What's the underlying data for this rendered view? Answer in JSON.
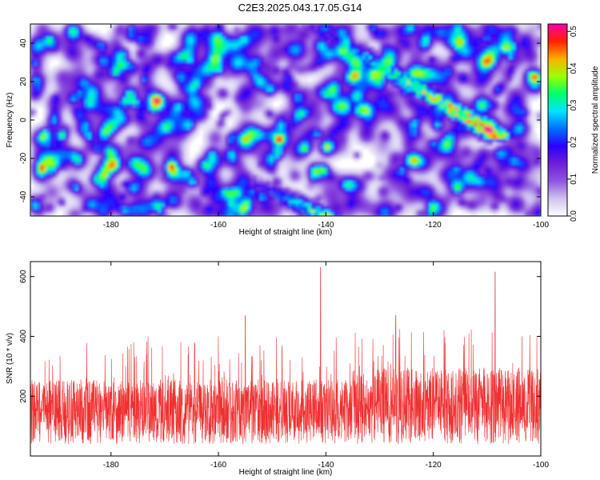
{
  "title": "C2E3.2025.043.17.05.G14",
  "chart_data": [
    {
      "type": "heatmap",
      "xlabel": "Height of straight line (km)",
      "ylabel": "Frequency (Hz)",
      "xlim": [
        -195,
        -100
      ],
      "ylim": [
        -50,
        50
      ],
      "xticks": [
        "-180",
        "-160",
        "-140",
        "-120",
        "-100"
      ],
      "yticks": [
        "40",
        "20",
        "0",
        "-20",
        "-40"
      ],
      "colorbar": {
        "label": "Normalized spectral amplitude",
        "range": [
          0,
          0.52
        ],
        "ticks": [
          "0.5",
          "0.4",
          "0.3",
          "0.2",
          "0.1",
          "0.0"
        ],
        "colors": [
          "#ffffff",
          "#cfc2ee",
          "#8f55e0",
          "#6e1fd6",
          "#2a00ff",
          "#0070ff",
          "#00e5ff",
          "#00ff6a",
          "#9dff00",
          "#ffb000",
          "#ff2000",
          "#ff00a8"
        ]
      },
      "ridges": [
        {
          "x": [
            -142,
            -108
          ],
          "y": [
            48,
            -8
          ],
          "peak": 0.48
        },
        {
          "x": [
            -155,
            -140
          ],
          "y": [
            -31,
            -50
          ],
          "peak": 0.36
        }
      ],
      "background_mean": 0.05
    },
    {
      "type": "line",
      "xlabel": "Height of straight line (km)",
      "ylabel": "SNR (10 * v/v)",
      "xlim": [
        -195,
        -100
      ],
      "ylim": [
        0,
        650
      ],
      "xticks": [
        "-180",
        "-160",
        "-140",
        "-120",
        "-100"
      ],
      "yticks": [
        "600",
        "400",
        "200"
      ],
      "color": "#f03030",
      "baseline_mean": 160,
      "peaks": [
        {
          "x": -141,
          "y": 630
        },
        {
          "x": -108.5,
          "y": 615
        },
        {
          "x": -155,
          "y": 470
        },
        {
          "x": -127,
          "y": 470
        }
      ]
    }
  ]
}
